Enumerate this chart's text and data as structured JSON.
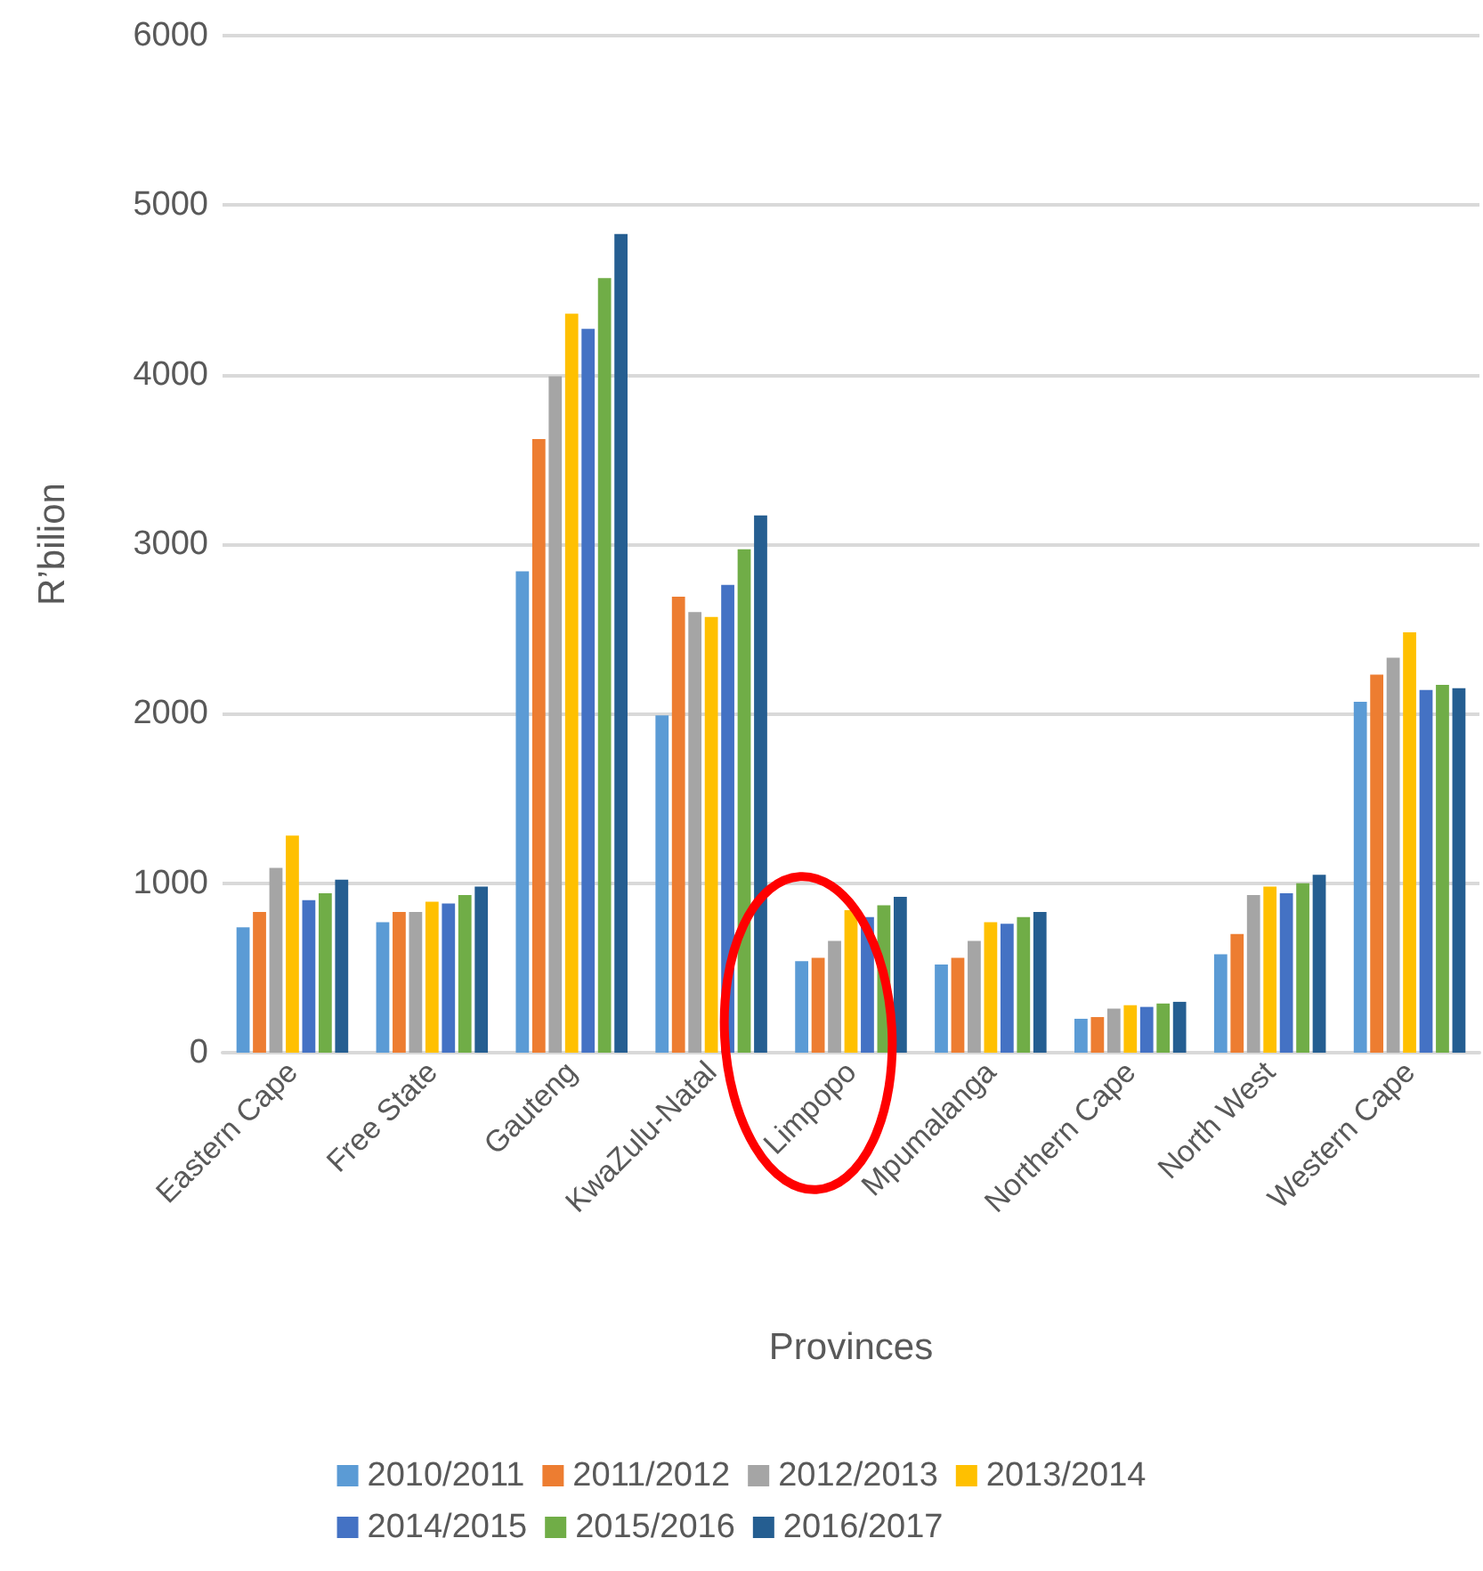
{
  "chart_data": {
    "type": "bar",
    "xlabel": "Provinces",
    "ylabel": "R’bilion",
    "categories": [
      "Eastern Cape",
      "Free State",
      "Gauteng",
      "KwaZulu-Natal",
      "Limpopo",
      "Mpumalanga",
      "Northern Cape",
      "North West",
      "Western Cape"
    ],
    "series": [
      {
        "name": "2010/2011",
        "color": "#5b9bd5",
        "values": [
          740,
          770,
          2840,
          1990,
          540,
          520,
          200,
          580,
          2070
        ]
      },
      {
        "name": "2011/2012",
        "color": "#ed7d31",
        "values": [
          830,
          830,
          3620,
          2690,
          560,
          560,
          210,
          700,
          2230
        ]
      },
      {
        "name": "2012/2013",
        "color": "#a5a5a5",
        "values": [
          1090,
          830,
          3990,
          2600,
          660,
          660,
          260,
          930,
          2330
        ]
      },
      {
        "name": "2013/2014",
        "color": "#ffc000",
        "values": [
          1280,
          890,
          4360,
          2570,
          840,
          770,
          280,
          980,
          2480
        ]
      },
      {
        "name": "2014/2015",
        "color": "#4472c4",
        "values": [
          900,
          880,
          4270,
          2760,
          800,
          760,
          270,
          940,
          2140
        ]
      },
      {
        "name": "2015/2016",
        "color": "#70ad47",
        "values": [
          940,
          930,
          4570,
          2970,
          870,
          800,
          290,
          1000,
          2170
        ]
      },
      {
        "name": "2016/2017",
        "color": "#255e91",
        "values": [
          1020,
          980,
          4830,
          3170,
          920,
          830,
          300,
          1050,
          2150
        ]
      }
    ],
    "ylim": [
      0,
      6000
    ],
    "yticks": [
      0,
      1000,
      2000,
      3000,
      4000,
      5000,
      6000
    ],
    "grid": "y",
    "legend": "bottom"
  }
}
